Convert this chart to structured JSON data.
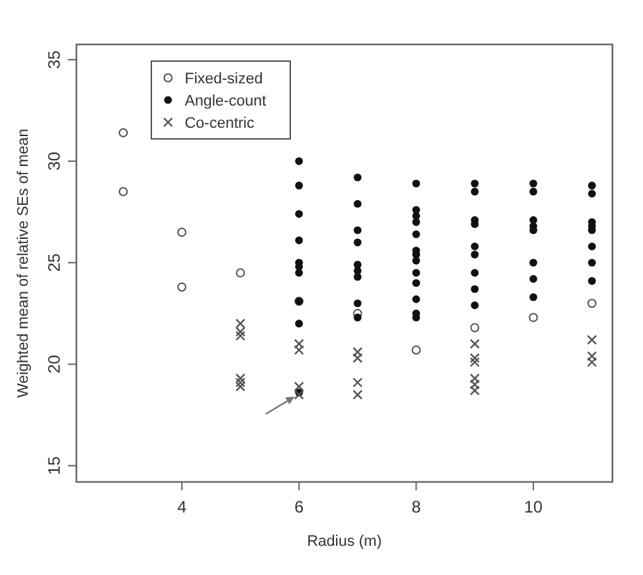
{
  "chart_data": {
    "type": "scatter",
    "xlabel": "Radius (m)",
    "ylabel": "Weighted mean of relative SEs of mean",
    "xlim": [
      2.2,
      11.35
    ],
    "xticks": [
      4,
      6,
      8,
      10
    ],
    "ylim": [
      14.2,
      35.75
    ],
    "yticks": [
      15,
      20,
      25,
      30,
      35
    ],
    "grid": false,
    "legend": "top left",
    "series": [
      {
        "name": "Fixed-sized",
        "color": "#555555",
        "marker": "circle-open",
        "x": [
          3,
          3,
          4,
          4,
          5,
          6,
          7,
          8,
          9,
          10,
          11
        ],
        "values": [
          31.4,
          28.5,
          26.5,
          23.8,
          24.5,
          23.1,
          22.5,
          20.7,
          21.8,
          22.3,
          23.0
        ]
      },
      {
        "name": "Angle-count",
        "color": "#111111",
        "marker": "circle",
        "x": [
          6,
          6,
          6,
          6,
          6,
          6,
          6,
          6,
          6,
          6,
          7,
          7,
          7,
          7,
          7,
          7,
          7,
          7,
          7,
          8,
          8,
          8,
          8,
          8,
          8,
          8,
          8,
          8,
          8,
          8,
          8,
          8,
          9,
          9,
          9,
          9,
          9,
          9,
          9,
          9,
          9,
          10,
          10,
          10,
          10,
          10,
          10,
          10,
          10,
          11,
          11,
          11,
          11,
          11,
          11,
          11,
          11
        ],
        "values": [
          30.0,
          28.8,
          27.4,
          26.1,
          25.0,
          24.8,
          24.5,
          23.1,
          22.0,
          18.6,
          29.2,
          27.9,
          26.6,
          26.0,
          24.9,
          24.6,
          24.3,
          23.0,
          22.3,
          28.9,
          27.6,
          27.3,
          27.0,
          26.4,
          25.6,
          25.4,
          25.1,
          24.5,
          24.0,
          23.2,
          22.5,
          22.3,
          28.9,
          28.5,
          27.1,
          26.9,
          25.8,
          25.4,
          24.5,
          23.7,
          22.9,
          28.9,
          28.5,
          27.1,
          26.8,
          26.6,
          25.0,
          24.2,
          23.3,
          28.8,
          28.4,
          27.0,
          26.8,
          26.6,
          25.8,
          25.0,
          24.1
        ]
      },
      {
        "name": "Co-centric",
        "color": "#555555",
        "marker": "cross",
        "x": [
          5,
          5,
          5,
          5,
          5,
          5,
          6,
          6,
          6,
          6,
          7,
          7,
          7,
          7,
          9,
          9,
          9,
          9,
          9,
          9,
          11,
          11,
          11
        ],
        "values": [
          22.0,
          21.6,
          21.4,
          19.3,
          19.1,
          18.9,
          21.0,
          20.7,
          18.9,
          18.5,
          20.6,
          20.3,
          19.1,
          18.5,
          21.0,
          20.3,
          20.1,
          19.3,
          19.0,
          18.7,
          21.2,
          20.4,
          20.1
        ]
      }
    ]
  }
}
